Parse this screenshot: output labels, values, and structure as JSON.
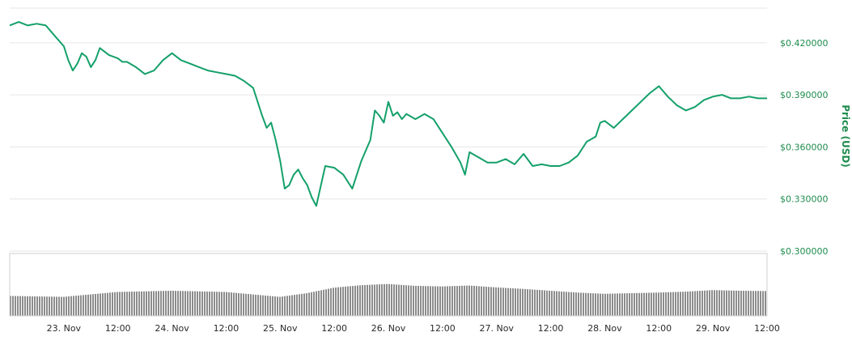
{
  "chart_data": {
    "type": "line",
    "ylabel": "Price (USD)",
    "ylim": [
      0.3,
      0.44
    ],
    "yticks": [
      {
        "value": 0.3,
        "label": "$0.300000"
      },
      {
        "value": 0.33,
        "label": "$0.330000"
      },
      {
        "value": 0.36,
        "label": "$0.360000"
      },
      {
        "value": 0.39,
        "label": "$0.390000"
      },
      {
        "value": 0.42,
        "label": "$0.420000"
      }
    ],
    "xlim": [
      0,
      168
    ],
    "xticks": [
      {
        "hour": 12,
        "label": "23. Nov"
      },
      {
        "hour": 24,
        "label": "12:00"
      },
      {
        "hour": 36,
        "label": "24. Nov"
      },
      {
        "hour": 48,
        "label": "12:00"
      },
      {
        "hour": 60,
        "label": "25. Nov"
      },
      {
        "hour": 72,
        "label": "12:00"
      },
      {
        "hour": 84,
        "label": "26. Nov"
      },
      {
        "hour": 96,
        "label": "12:00"
      },
      {
        "hour": 108,
        "label": "27. Nov"
      },
      {
        "hour": 120,
        "label": "12:00"
      },
      {
        "hour": 132,
        "label": "28. Nov"
      },
      {
        "hour": 144,
        "label": "12:00"
      },
      {
        "hour": 156,
        "label": "29. Nov"
      },
      {
        "hour": 168,
        "label": "12:00"
      }
    ],
    "series": [
      {
        "x": [
          0,
          2,
          4,
          6,
          8,
          10,
          12,
          13,
          14,
          15,
          16,
          17,
          18,
          19,
          20,
          22,
          24,
          25,
          26,
          28,
          30,
          32,
          34,
          36,
          38,
          40,
          42,
          44,
          46,
          48,
          50,
          52,
          54,
          56,
          57,
          58,
          59,
          60,
          61,
          62,
          63,
          64,
          65,
          66,
          67,
          68,
          70,
          72,
          74,
          76,
          78,
          80,
          81,
          82,
          83,
          84,
          85,
          86,
          87,
          88,
          90,
          92,
          94,
          96,
          98,
          100,
          101,
          102,
          104,
          106,
          108,
          110,
          112,
          114,
          116,
          118,
          120,
          122,
          124,
          126,
          128,
          130,
          131,
          132,
          134,
          136,
          138,
          140,
          142,
          144,
          146,
          148,
          150,
          152,
          154,
          156,
          158,
          160,
          162,
          164,
          166,
          168
        ],
        "y": [
          0.43,
          0.432,
          0.43,
          0.431,
          0.43,
          0.424,
          0.418,
          0.41,
          0.404,
          0.408,
          0.414,
          0.412,
          0.406,
          0.41,
          0.417,
          0.413,
          0.411,
          0.409,
          0.409,
          0.406,
          0.402,
          0.404,
          0.41,
          0.414,
          0.41,
          0.408,
          0.406,
          0.404,
          0.403,
          0.402,
          0.401,
          0.398,
          0.394,
          0.378,
          0.371,
          0.374,
          0.364,
          0.352,
          0.336,
          0.338,
          0.344,
          0.347,
          0.342,
          0.338,
          0.331,
          0.326,
          0.349,
          0.348,
          0.344,
          0.336,
          0.352,
          0.364,
          0.381,
          0.378,
          0.374,
          0.386,
          0.378,
          0.38,
          0.376,
          0.379,
          0.376,
          0.379,
          0.376,
          0.368,
          0.36,
          0.351,
          0.344,
          0.357,
          0.354,
          0.351,
          0.351,
          0.353,
          0.35,
          0.356,
          0.349,
          0.35,
          0.349,
          0.349,
          0.351,
          0.355,
          0.363,
          0.366,
          0.374,
          0.375,
          0.371,
          0.376,
          0.381,
          0.386,
          0.391,
          0.395,
          0.389,
          0.384,
          0.381,
          0.383,
          0.387,
          0.389,
          0.39,
          0.388,
          0.388,
          0.389,
          0.388,
          0.388
        ],
        "color": "#14a06a"
      }
    ],
    "volume": {
      "x": [
        0,
        12,
        24,
        36,
        48,
        60,
        66,
        72,
        78,
        84,
        90,
        96,
        102,
        108,
        114,
        120,
        126,
        132,
        138,
        144,
        150,
        156,
        162,
        168
      ],
      "y": [
        0.65,
        0.62,
        0.78,
        0.82,
        0.78,
        0.62,
        0.74,
        0.92,
        1.0,
        1.04,
        0.98,
        0.96,
        0.99,
        0.93,
        0.88,
        0.82,
        0.76,
        0.72,
        0.74,
        0.76,
        0.79,
        0.84,
        0.82,
        0.81
      ]
    },
    "grid": true
  }
}
